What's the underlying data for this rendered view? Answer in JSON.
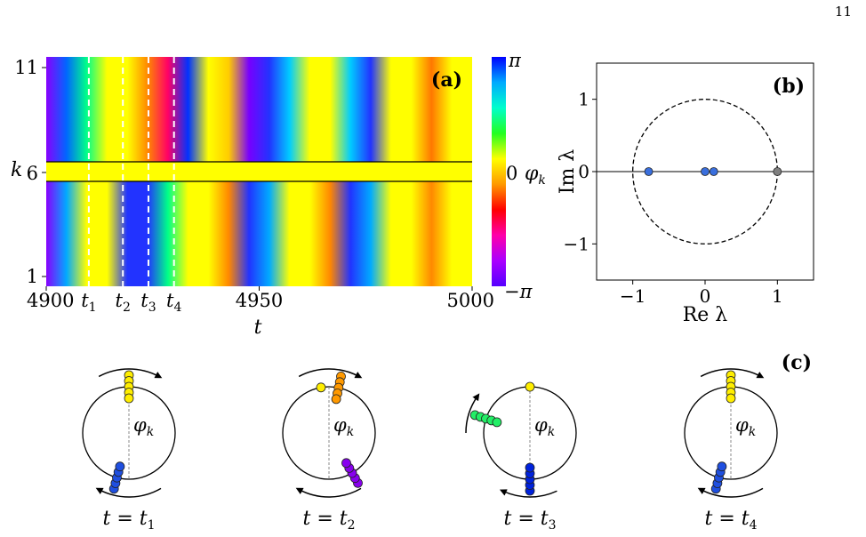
{
  "page_number": "11",
  "panel_a": {
    "label": "(a)",
    "ylabel": "k",
    "xlabel": "t",
    "yticks": [
      "1",
      "6",
      "11"
    ],
    "xticks": [
      {
        "value": 4900,
        "label": "4900"
      },
      {
        "value": 4950,
        "label": "4950"
      },
      {
        "value": 5000,
        "label": "5000"
      }
    ],
    "xlim": [
      4900,
      5000
    ],
    "marked_times": [
      {
        "label": "t",
        "sub": "1",
        "t": 4910
      },
      {
        "label": "t",
        "sub": "2",
        "t": 4918
      },
      {
        "label": "t",
        "sub": "3",
        "t": 4924
      },
      {
        "label": "t",
        "sub": "4",
        "t": 4930
      }
    ],
    "colorbar": {
      "label": "φ",
      "label_sub": "k",
      "ticks": [
        "π",
        "0",
        "−π"
      ],
      "colors_top_to_bottom": [
        "#0000ff",
        "#00aaff",
        "#00ffcc",
        "#22ff22",
        "#ffff00",
        "#ff9900",
        "#ff0000",
        "#ff00aa",
        "#aa00ff",
        "#5500ff"
      ]
    },
    "bands_upper_hex_left_to_right": [
      "#8800ff",
      "#0066ff",
      "#00ff88",
      "#ffff00",
      "#ffff00",
      "#ff8800",
      "#ff0066",
      "#0033ff",
      "#ffff00",
      "#ffcc00",
      "#7700ff",
      "#2233ff",
      "#00ccff",
      "#ffff00",
      "#ffff00",
      "#00ccff",
      "#2233ff",
      "#ffff00",
      "#ffff00",
      "#ff7700",
      "#ffff00",
      "#ffff00"
    ],
    "bands_lower_hex_left_to_right": [
      "#8800ff",
      "#00aaff",
      "#ffff00",
      "#ffff00",
      "#2233ff",
      "#2233ff",
      "#00ff88",
      "#ffff00",
      "#ffff00",
      "#ff8800",
      "#2233ff",
      "#00aaff",
      "#ffff00",
      "#ffff00",
      "#ff8800",
      "#2233ff",
      "#00aaff",
      "#ffff00",
      "#ffff00",
      "#ff8800",
      "#ffff00",
      "#ffff00"
    ]
  },
  "panel_b": {
    "label": "(b)",
    "xlabel": "Re λ",
    "ylabel": "Im λ",
    "xlim": [
      -1.5,
      1.5
    ],
    "ylim": [
      -1.5,
      1.5
    ],
    "xticks": [
      {
        "value": -1,
        "label": "−1"
      },
      {
        "value": 0,
        "label": "0"
      },
      {
        "value": 1,
        "label": "1"
      }
    ],
    "yticks": [
      {
        "value": 1,
        "label": "1"
      },
      {
        "value": 0,
        "label": "0"
      },
      {
        "value": -1,
        "label": "−1"
      }
    ],
    "eigenvalues": [
      {
        "re": -0.78,
        "im": 0,
        "color": "#3a6fdd"
      },
      {
        "re": 0.0,
        "im": 0,
        "color": "#3a6fdd"
      },
      {
        "re": 0.12,
        "im": 0,
        "color": "#3a6fdd"
      },
      {
        "re": 1.0,
        "im": 0,
        "color": "#808080"
      }
    ]
  },
  "panel_c": {
    "label": "(c)",
    "angle_label": "φ",
    "angle_sub": "k",
    "snapshots": [
      {
        "caption_var": "t",
        "caption_sub": "1",
        "groups": [
          {
            "angle_deg": 90,
            "count": 5,
            "color": "#ffee00",
            "stack": "radial"
          },
          {
            "angle_deg": 255,
            "count": 5,
            "color": "#1f4fe0",
            "stack": "radial"
          }
        ],
        "arrows": [
          "top-cw",
          "bottom-cw"
        ]
      },
      {
        "caption_var": "t",
        "caption_sub": "2",
        "groups": [
          {
            "angle_deg": 100,
            "count": 1,
            "color": "#ffee00",
            "stack": "radial"
          },
          {
            "angle_deg": 78,
            "count": 5,
            "color": "#ff9900",
            "stack": "radial"
          },
          {
            "angle_deg": 300,
            "count": 5,
            "color": "#8800ee",
            "stack": "radial"
          }
        ],
        "arrows": [
          "top-cw",
          "bottom-cw"
        ]
      },
      {
        "caption_var": "t",
        "caption_sub": "3",
        "groups": [
          {
            "angle_deg": 90,
            "count": 1,
            "color": "#ffee00",
            "stack": "radial"
          },
          {
            "angle_deg": 162,
            "count": 5,
            "color": "#22ee66",
            "stack": "radial"
          },
          {
            "angle_deg": 270,
            "count": 5,
            "color": "#0022dd",
            "stack": "radial"
          }
        ],
        "arrows": [
          "left-ccw",
          "bottom-ccw"
        ]
      },
      {
        "caption_var": "t",
        "caption_sub": "4",
        "groups": [
          {
            "angle_deg": 90,
            "count": 5,
            "color": "#ffee00",
            "stack": "radial"
          },
          {
            "angle_deg": 255,
            "count": 5,
            "color": "#1f4fe0",
            "stack": "radial"
          }
        ],
        "arrows": [
          "top-cw",
          "bottom-cw"
        ]
      }
    ]
  }
}
